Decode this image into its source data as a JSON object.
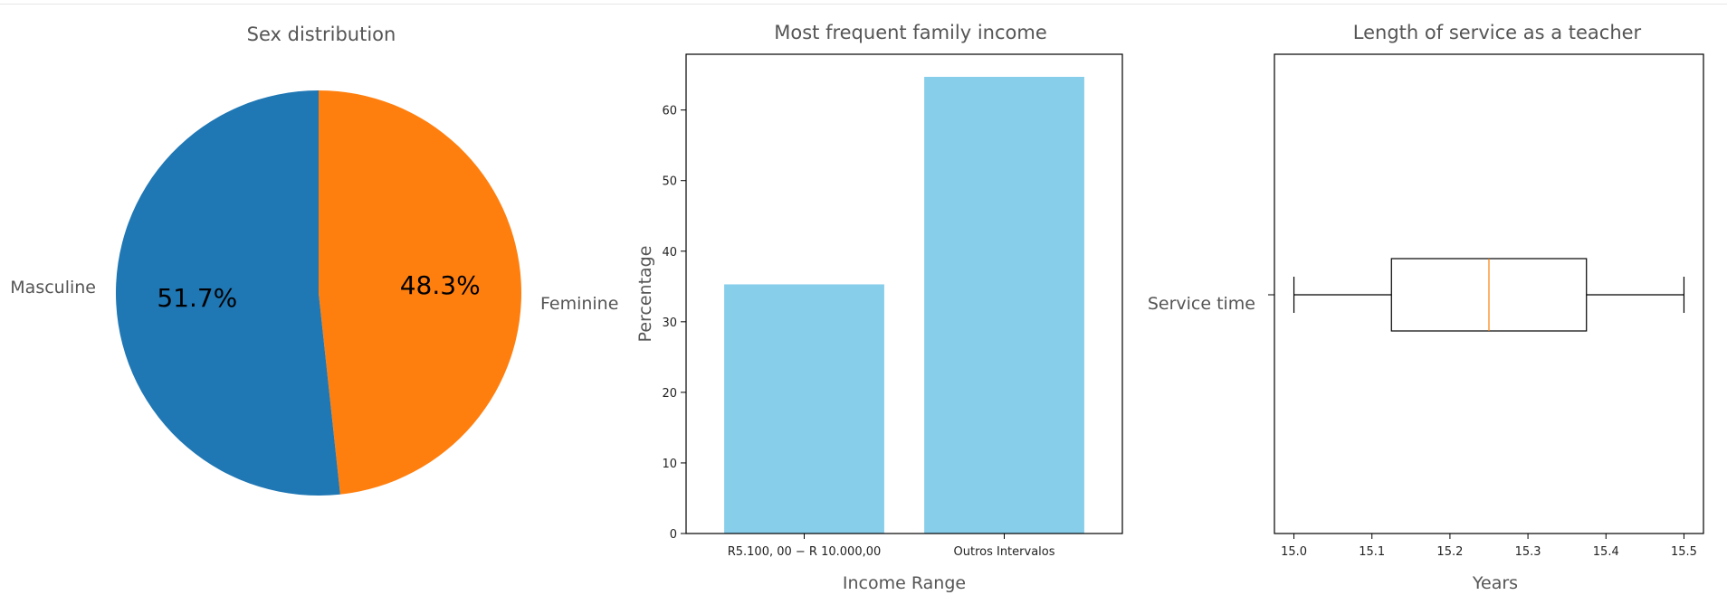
{
  "colors": {
    "masculine": "#1f77b4",
    "feminine": "#ff7f0e",
    "bar": "#87ceeb",
    "median": "#ff7f0e",
    "text": "#555555"
  },
  "chart_data": [
    {
      "type": "pie",
      "title": "Sex distribution",
      "labels": [
        "Masculine",
        "Feminine"
      ],
      "values": [
        51.7,
        48.3
      ],
      "autopct_labels": [
        "51.7%",
        "48.3%"
      ],
      "start_angle_deg": 90,
      "direction": "clockwise",
      "first_slice": "Feminine"
    },
    {
      "type": "bar",
      "title": "Most frequent family income",
      "categories": [
        "R$5.100,00 – R$ 10.000,00",
        "Outros Intervalos"
      ],
      "category_tick_labels": [
        "R5.100, 00 − R 10.000,00",
        "Outros Intervalos"
      ],
      "values": [
        35.3,
        64.7
      ],
      "xlabel": "Income Range",
      "ylabel": "Percentage",
      "ylim": [
        0,
        67.9
      ],
      "yticks": [
        0,
        10,
        20,
        30,
        40,
        50,
        60
      ],
      "grid": false
    },
    {
      "type": "box",
      "orientation": "horizontal",
      "title": "Length of service as a teacher",
      "category": "Service time",
      "min": 15.0,
      "q1": 15.125,
      "median": 15.25,
      "q3": 15.375,
      "max": 15.5,
      "xlabel": "Years",
      "xlim": [
        14.975,
        15.525
      ],
      "xticks": [
        "15.0",
        "15.1",
        "15.2",
        "15.3",
        "15.4",
        "15.5"
      ],
      "grid": false
    }
  ]
}
